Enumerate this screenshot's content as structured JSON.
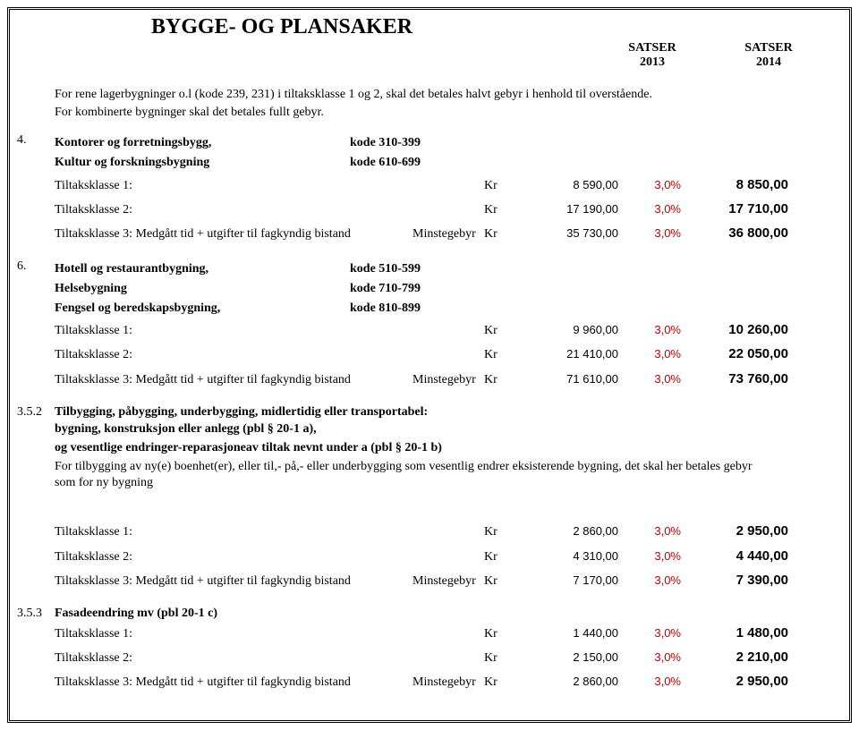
{
  "title": "BYGGE- OG PLANSAKER",
  "header": {
    "satser_label": "SATSER",
    "year_a": "2013",
    "year_b": "2014"
  },
  "intro": {
    "line1": "For rene lagerbygninger o.l (kode 239, 231)  i tiltaksklasse 1 og 2, skal det betales halvt gebyr i henhold til overstående.",
    "line2": "For kombinerte bygninger skal det betales fullt gebyr."
  },
  "sec4": {
    "num": "4.",
    "h1": "Kontorer og forretningsbygg,",
    "h1_kode": "kode 310-399",
    "h2": "Kultur og forskningsbygning",
    "h2_kode": "kode 610-699",
    "rows": [
      {
        "lbl": "Tiltaksklasse 1:",
        "mid": "",
        "kr": "Kr",
        "v13": "8 590,00",
        "pct": "3,0%",
        "v14": "8 850,00"
      },
      {
        "lbl": "Tiltaksklasse 2:",
        "mid": "",
        "kr": "Kr",
        "v13": "17 190,00",
        "pct": "3,0%",
        "v14": "17 710,00"
      },
      {
        "lbl": "Tiltaksklasse 3: Medgått tid + utgifter til fagkyndig bistand",
        "mid": "Minstegebyr",
        "kr": "Kr",
        "v13": "35 730,00",
        "pct": "3,0%",
        "v14": "36 800,00"
      }
    ]
  },
  "sec6": {
    "num": "6.",
    "h1": "Hotell og restaurantbygning,",
    "h1_kode": "kode 510-599",
    "h2": "Helsebygning",
    "h2_kode": "kode 710-799",
    "h3": "Fengsel og beredskapsbygning,",
    "h3_kode": "kode 810-899",
    "rows": [
      {
        "lbl": "Tiltaksklasse 1:",
        "mid": "",
        "kr": "Kr",
        "v13": "9 960,00",
        "pct": "3,0%",
        "v14": "10 260,00"
      },
      {
        "lbl": "Tiltaksklasse 2:",
        "mid": "",
        "kr": "Kr",
        "v13": "21 410,00",
        "pct": "3,0%",
        "v14": "22 050,00"
      },
      {
        "lbl": "Tiltaksklasse 3: Medgått tid + utgifter til fagkyndig bistand",
        "mid": "Minstegebyr",
        "kr": "Kr",
        "v13": "71 610,00",
        "pct": "3,0%",
        "v14": "73 760,00"
      }
    ]
  },
  "sec352": {
    "num": "3.5.2",
    "h1": "Tilbygging, påbygging, underbygging, midlertidig eller transportabel:",
    "p1": "bygning, konstruksjon eller anlegg (pbl § 20-1 a),",
    "p2": "og vesentlige endringer-reparasjoneav tiltak nevnt under a (pbl § 20-1 b)",
    "p3": "For tilbygging av ny(e) boenhet(er), eller til,- på,- eller underbygging som vesentlig endrer eksisterende bygning, det skal her betales gebyr som for ny bygning",
    "rows": [
      {
        "lbl": "Tiltaksklasse 1:",
        "mid": "",
        "kr": "Kr",
        "v13": "2 860,00",
        "pct": "3,0%",
        "v14": "2 950,00"
      },
      {
        "lbl": "Tiltaksklasse 2:",
        "mid": "",
        "kr": "Kr",
        "v13": "4 310,00",
        "pct": "3,0%",
        "v14": "4 440,00"
      },
      {
        "lbl": "Tiltaksklasse 3: Medgått tid + utgifter til fagkyndig bistand",
        "mid": "Minstegebyr",
        "kr": "Kr",
        "v13": "7 170,00",
        "pct": "3,0%",
        "v14": "7 390,00"
      }
    ]
  },
  "sec353": {
    "num": "3.5.3",
    "h1": "Fasadeendring mv (pbl 20-1 c)",
    "rows": [
      {
        "lbl": "Tiltaksklasse 1:",
        "mid": "",
        "kr": "Kr",
        "v13": "1 440,00",
        "pct": "3,0%",
        "v14": "1 480,00"
      },
      {
        "lbl": "Tiltaksklasse 2:",
        "mid": "",
        "kr": "Kr",
        "v13": "2 150,00",
        "pct": "3,0%",
        "v14": "2 210,00"
      },
      {
        "lbl": "Tiltaksklasse 3: Medgått tid + utgifter til fagkyndig bistand",
        "mid": "Minstegebyr",
        "kr": "Kr",
        "v13": "2 860,00",
        "pct": "3,0%",
        "v14": "2 950,00"
      }
    ]
  },
  "styling": {
    "pct_color": "#c00000",
    "value_font": "Arial",
    "border_style": "double",
    "title_fontsize_pt": 18,
    "body_fontsize_pt": 11
  }
}
